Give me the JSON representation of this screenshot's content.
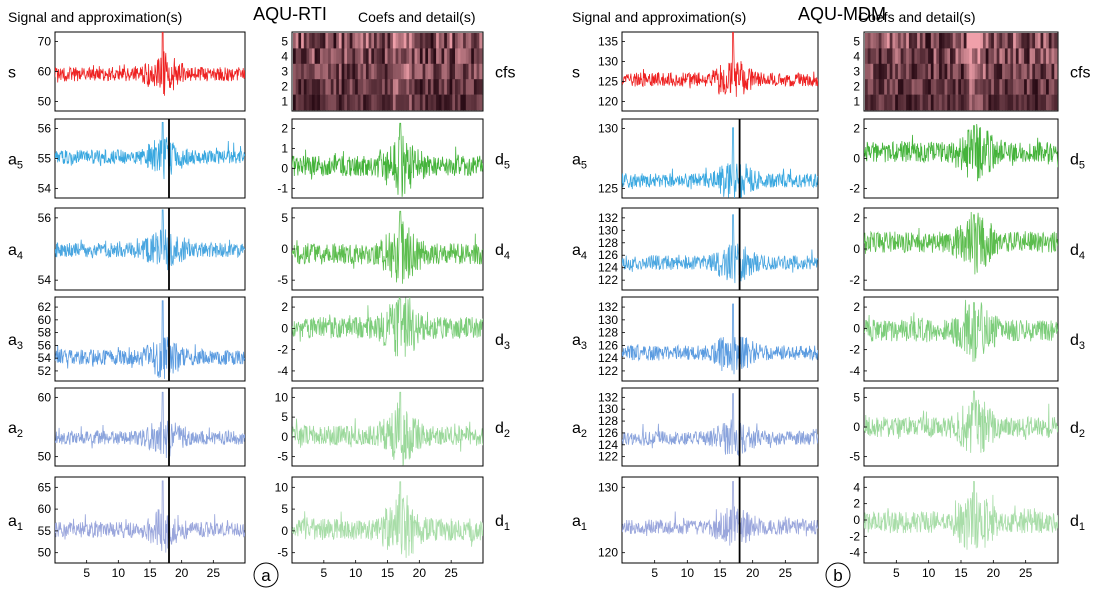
{
  "panels": [
    {
      "title": "AQU-RTI",
      "left_header": "Signal and approximation(s)",
      "right_header": "Coefs and detail(s)",
      "badge": "a",
      "coefs_label": "cfs",
      "coefs_yticks": [
        "5",
        "4",
        "3",
        "2",
        "1"
      ],
      "xticks": [
        "5",
        "10",
        "15",
        "20",
        "25"
      ],
      "rows": [
        {
          "label": "s",
          "sub": "",
          "yticks": [
            "70",
            "60",
            "50"
          ],
          "right_label": "cfs",
          "right_sub": ""
        },
        {
          "label": "a",
          "sub": "5",
          "yticks": [
            "56",
            "55",
            "54"
          ],
          "right_label": "d",
          "right_sub": "5",
          "right_yticks": [
            "2",
            "1",
            "0",
            "-1"
          ]
        },
        {
          "label": "a",
          "sub": "4",
          "yticks": [
            "56",
            "54"
          ],
          "right_label": "d",
          "right_sub": "4",
          "right_yticks": [
            "5",
            "0",
            "-5"
          ]
        },
        {
          "label": "a",
          "sub": "3",
          "yticks": [
            "62",
            "60",
            "58",
            "56",
            "54",
            "52"
          ],
          "right_label": "d",
          "right_sub": "3",
          "right_yticks": [
            "2",
            "0",
            "-2",
            "-4"
          ]
        },
        {
          "label": "a",
          "sub": "2",
          "yticks": [
            "60",
            "50"
          ],
          "right_label": "d",
          "right_sub": "2",
          "right_yticks": [
            "10",
            "5",
            "0",
            "-5"
          ]
        },
        {
          "label": "a",
          "sub": "1",
          "yticks": [
            "65",
            "60",
            "55",
            "50"
          ],
          "right_label": "d",
          "right_sub": "1",
          "right_yticks": [
            "10",
            "5",
            "0",
            "-5"
          ]
        }
      ]
    },
    {
      "title": "AQU-MDM",
      "left_header": "Signal and approximation(s)",
      "right_header": "Coefs and detail(s)",
      "badge": "b",
      "coefs_label": "cfs",
      "coefs_yticks": [
        "5",
        "4",
        "3",
        "2",
        "1"
      ],
      "xticks": [
        "5",
        "10",
        "15",
        "20",
        "25"
      ],
      "rows": [
        {
          "label": "s",
          "sub": "",
          "yticks": [
            "135",
            "130",
            "125",
            "120"
          ],
          "right_label": "cfs",
          "right_sub": ""
        },
        {
          "label": "a",
          "sub": "5",
          "yticks": [
            "130",
            "125"
          ],
          "right_label": "d",
          "right_sub": "5",
          "right_yticks": [
            "2",
            "0",
            "-2"
          ]
        },
        {
          "label": "a",
          "sub": "4",
          "yticks": [
            "132",
            "130",
            "128",
            "126",
            "124",
            "122"
          ],
          "right_label": "d",
          "right_sub": "4",
          "right_yticks": [
            "2",
            "0",
            "-2"
          ]
        },
        {
          "label": "a",
          "sub": "3",
          "yticks": [
            "132",
            "130",
            "128",
            "126",
            "124",
            "122"
          ],
          "right_label": "d",
          "right_sub": "3",
          "right_yticks": [
            "2",
            "0",
            "-2",
            "-4"
          ]
        },
        {
          "label": "a",
          "sub": "2",
          "yticks": [
            "132",
            "130",
            "128",
            "126",
            "124",
            "122"
          ],
          "right_label": "d",
          "right_sub": "2",
          "right_yticks": [
            "5",
            "0",
            "-5"
          ]
        },
        {
          "label": "a",
          "sub": "1",
          "yticks": [
            "130",
            "120"
          ],
          "right_label": "d",
          "right_sub": "1",
          "right_yticks": [
            "4",
            "2",
            "0",
            "-2",
            "-4"
          ]
        }
      ]
    }
  ],
  "chart_data": [
    {
      "type": "line",
      "title": "AQU-RTI",
      "x_range": [
        0,
        30
      ],
      "event_x": 18,
      "left_column": "Signal and approximation(s)",
      "right_column": "Coefs and detail(s)",
      "series": [
        {
          "name": "s",
          "color": "#ee2222",
          "ylim": [
            41,
            71
          ],
          "baseline": 55,
          "spike": 71
        },
        {
          "name": "a5",
          "color": "#3aa8e0",
          "ylim": [
            53.7,
            56
          ],
          "baseline": 54.9,
          "spike": 55.9
        },
        {
          "name": "a4",
          "color": "#4aa6e0",
          "ylim": [
            52.7,
            57
          ],
          "baseline": 54.8,
          "spike": 56.9
        },
        {
          "name": "a3",
          "color": "#5a9be0",
          "ylim": [
            51.5,
            62.5
          ],
          "baseline": 54.6,
          "spike": 62
        },
        {
          "name": "a2",
          "color": "#8aa3dc",
          "ylim": [
            48,
            66
          ],
          "baseline": 54.5,
          "spike": 65
        },
        {
          "name": "a1",
          "color": "#9aa6dc",
          "ylim": [
            46,
            68
          ],
          "baseline": 54.5,
          "spike": 67
        },
        {
          "name": "d5",
          "color": "#44b33a",
          "ylim": [
            -1.5,
            2.2
          ],
          "baseline": 0,
          "spike": 2
        },
        {
          "name": "d4",
          "color": "#5cbd4e",
          "ylim": [
            -5.5,
            7
          ],
          "baseline": 0,
          "spike": 6.5
        },
        {
          "name": "d3",
          "color": "#7ccd7a",
          "ylim": [
            -5.5,
            3.2
          ],
          "baseline": 0,
          "spike": 3
        },
        {
          "name": "d2",
          "color": "#9ad89a",
          "ylim": [
            -7,
            11
          ],
          "baseline": 0,
          "spike": 10
        },
        {
          "name": "d1",
          "color": "#a8dda8",
          "ylim": [
            -7,
            11
          ],
          "baseline": 0,
          "spike": 10
        }
      ]
    },
    {
      "type": "line",
      "title": "AQU-MDM",
      "x_range": [
        0,
        30
      ],
      "event_x": 18,
      "left_column": "Signal and approximation(s)",
      "right_column": "Coefs and detail(s)",
      "series": [
        {
          "name": "s",
          "color": "#ee2222",
          "ylim": [
            117,
            137
          ],
          "baseline": 125,
          "spike": 137
        },
        {
          "name": "a5",
          "color": "#3aa8e0",
          "ylim": [
            123,
            132
          ],
          "baseline": 125,
          "spike": 131
        },
        {
          "name": "a4",
          "color": "#4aa6e0",
          "ylim": [
            121,
            133
          ],
          "baseline": 125,
          "spike": 132
        },
        {
          "name": "a3",
          "color": "#5a9be0",
          "ylim": [
            121,
            133
          ],
          "baseline": 125,
          "spike": 132
        },
        {
          "name": "a2",
          "color": "#8aa3dc",
          "ylim": [
            120,
            134
          ],
          "baseline": 125,
          "spike": 133
        },
        {
          "name": "a1",
          "color": "#9aa6dc",
          "ylim": [
            117,
            136
          ],
          "baseline": 125,
          "spike": 135
        },
        {
          "name": "d5",
          "color": "#44b33a",
          "ylim": [
            -3.5,
            2.5
          ],
          "baseline": 0,
          "spike": 2
        },
        {
          "name": "d4",
          "color": "#5cbd4e",
          "ylim": [
            -3.5,
            2.5
          ],
          "baseline": 0,
          "spike": 2
        },
        {
          "name": "d3",
          "color": "#7ccd7a",
          "ylim": [
            -4.5,
            3
          ],
          "baseline": 0,
          "spike": 2.5
        },
        {
          "name": "d2",
          "color": "#9ad89a",
          "ylim": [
            -6.5,
            6.5
          ],
          "baseline": 0,
          "spike": 6
        },
        {
          "name": "d1",
          "color": "#a8dda8",
          "ylim": [
            -4.5,
            5
          ],
          "baseline": 0,
          "spike": 4.5
        }
      ]
    }
  ]
}
